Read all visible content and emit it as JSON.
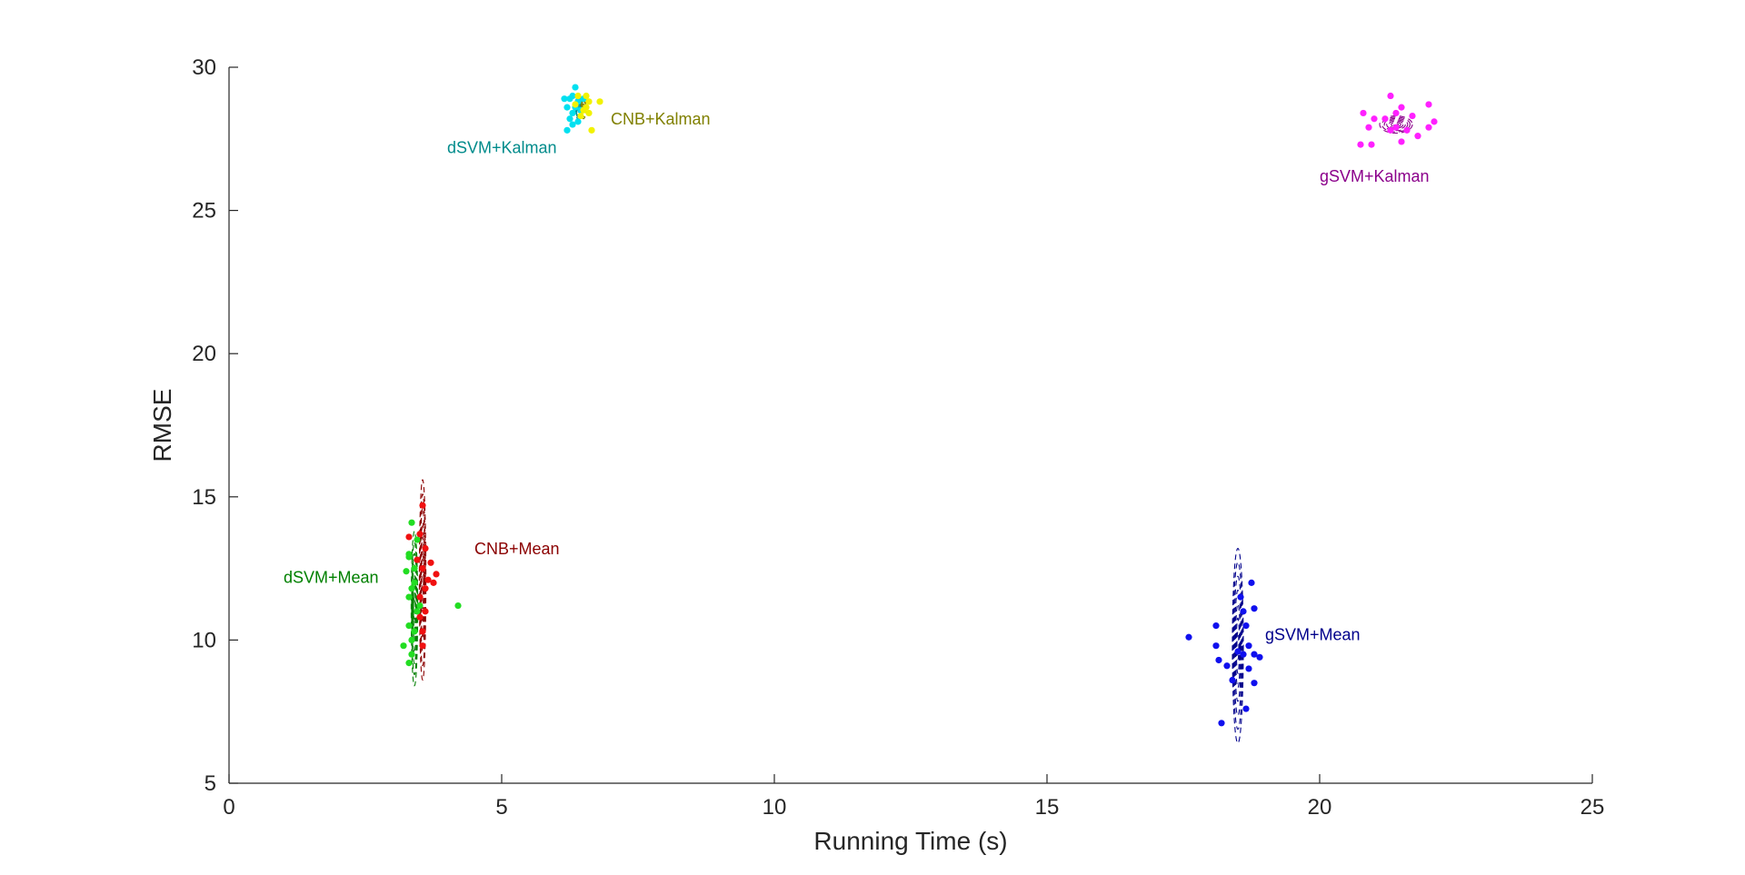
{
  "chart_data": {
    "type": "scatter",
    "title": "",
    "xlabel": "Running Time (s)",
    "ylabel": "RMSE",
    "xlim": [
      0,
      25
    ],
    "ylim": [
      5,
      30
    ],
    "xticks": [
      0,
      5,
      10,
      15,
      20,
      25
    ],
    "yticks": [
      5,
      10,
      15,
      20,
      25,
      30
    ],
    "grid": false,
    "legend": "none",
    "series": [
      {
        "color": "#00E0F0",
        "ellipse_color": "#008B8B",
        "ellipse_center": [
          6.4,
          28.6
        ],
        "ellipse_radii": [
          0.05,
          0.4
        ],
        "points": [
          [
            6.2,
            28.6
          ],
          [
            6.25,
            28.2
          ],
          [
            6.3,
            29.0
          ],
          [
            6.35,
            29.3
          ],
          [
            6.4,
            28.8
          ],
          [
            6.3,
            28.4
          ],
          [
            6.45,
            28.5
          ],
          [
            6.2,
            27.8
          ],
          [
            6.3,
            28.0
          ],
          [
            6.5,
            28.9
          ],
          [
            6.4,
            28.1
          ],
          [
            6.15,
            28.9
          ],
          [
            6.35,
            28.6
          ],
          [
            6.25,
            28.9
          ]
        ]
      },
      {
        "color": "#F2F200",
        "ellipse_color": "#808000",
        "ellipse_center": [
          6.5,
          28.6
        ],
        "ellipse_radii": [
          0.05,
          0.4
        ],
        "points": [
          [
            6.55,
            29.0
          ],
          [
            6.6,
            28.8
          ],
          [
            6.5,
            28.5
          ],
          [
            6.45,
            28.3
          ],
          [
            6.65,
            27.8
          ],
          [
            6.8,
            28.8
          ],
          [
            6.6,
            28.4
          ],
          [
            6.4,
            29.0
          ],
          [
            6.55,
            28.6
          ],
          [
            6.35,
            28.7
          ]
        ]
      },
      {
        "color": "#FF20FF",
        "ellipse_color": "#8B008B",
        "ellipse_center": [
          21.4,
          28.0
        ],
        "ellipse_radii": [
          0.3,
          0.3
        ],
        "points": [
          [
            20.8,
            28.4
          ],
          [
            21.3,
            29.0
          ],
          [
            20.9,
            27.9
          ],
          [
            21.5,
            28.6
          ],
          [
            22.0,
            28.7
          ],
          [
            21.6,
            27.8
          ],
          [
            21.0,
            28.2
          ],
          [
            21.4,
            27.9
          ],
          [
            21.7,
            28.3
          ],
          [
            20.75,
            27.3
          ],
          [
            21.5,
            27.4
          ],
          [
            20.95,
            27.3
          ],
          [
            21.8,
            27.6
          ],
          [
            22.1,
            28.1
          ],
          [
            21.2,
            28.2
          ],
          [
            21.4,
            28.4
          ],
          [
            22.0,
            27.9
          ],
          [
            21.3,
            27.8
          ]
        ]
      },
      {
        "color": "#22DD22",
        "ellipse_color": "#008000",
        "ellipse_center": [
          3.4,
          11.1
        ],
        "ellipse_radii": [
          0.06,
          2.7
        ],
        "points": [
          [
            3.35,
            14.1
          ],
          [
            3.3,
            13.0
          ],
          [
            3.4,
            12.5
          ],
          [
            3.25,
            12.4
          ],
          [
            3.35,
            11.8
          ],
          [
            3.3,
            11.5
          ],
          [
            3.45,
            11.0
          ],
          [
            3.3,
            10.5
          ],
          [
            3.35,
            10.0
          ],
          [
            3.2,
            9.8
          ],
          [
            3.3,
            9.2
          ],
          [
            3.45,
            13.5
          ],
          [
            3.4,
            12.0
          ],
          [
            3.5,
            11.2
          ],
          [
            4.2,
            11.2
          ],
          [
            3.4,
            10.3
          ],
          [
            3.3,
            12.9
          ],
          [
            3.35,
            9.5
          ]
        ]
      },
      {
        "color": "#F01010",
        "ellipse_color": "#8B0000",
        "ellipse_center": [
          3.55,
          12.1
        ],
        "ellipse_radii": [
          0.06,
          3.5
        ],
        "points": [
          [
            3.55,
            14.7
          ],
          [
            3.5,
            13.7
          ],
          [
            3.3,
            13.6
          ],
          [
            3.6,
            13.2
          ],
          [
            3.7,
            12.7
          ],
          [
            3.8,
            12.3
          ],
          [
            3.65,
            12.1
          ],
          [
            3.75,
            12.0
          ],
          [
            3.5,
            11.5
          ],
          [
            3.6,
            11.0
          ],
          [
            3.55,
            10.3
          ],
          [
            3.55,
            9.8
          ],
          [
            3.45,
            12.8
          ],
          [
            3.5,
            10.8
          ],
          [
            3.6,
            11.8
          ],
          [
            3.55,
            12.5
          ]
        ]
      },
      {
        "color": "#1010EE",
        "ellipse_color": "#00008B",
        "ellipse_center": [
          18.5,
          9.8
        ],
        "ellipse_radii": [
          0.1,
          3.4
        ],
        "points": [
          [
            17.6,
            10.1
          ],
          [
            18.1,
            10.5
          ],
          [
            18.1,
            9.8
          ],
          [
            18.15,
            9.3
          ],
          [
            18.2,
            7.1
          ],
          [
            18.6,
            11.0
          ],
          [
            18.65,
            10.5
          ],
          [
            18.7,
            9.8
          ],
          [
            18.75,
            12.0
          ],
          [
            18.8,
            11.1
          ],
          [
            18.6,
            9.5
          ],
          [
            18.7,
            9.0
          ],
          [
            18.65,
            7.6
          ],
          [
            18.8,
            8.5
          ],
          [
            18.9,
            9.4
          ],
          [
            18.4,
            8.6
          ],
          [
            18.5,
            9.6
          ],
          [
            18.8,
            9.5
          ],
          [
            18.55,
            11.5
          ],
          [
            18.3,
            9.1
          ]
        ]
      }
    ],
    "annotations": [
      {
        "text": "dSVM+Kalman",
        "x": 4.0,
        "y": 27.0,
        "color": "#008B8B"
      },
      {
        "text": "CNB+Kalman",
        "x": 7.0,
        "y": 28.0,
        "color": "#808000"
      },
      {
        "text": "gSVM+Kalman",
        "x": 20.0,
        "y": 26.0,
        "color": "#8B008B"
      },
      {
        "text": "CNB+Mean",
        "x": 4.5,
        "y": 13.0,
        "color": "#8B0000"
      },
      {
        "text": "dSVM+Mean",
        "x": 1.0,
        "y": 12.0,
        "color": "#008000"
      },
      {
        "text": "gSVM+Mean",
        "x": 19.0,
        "y": 10.0,
        "color": "#00008B"
      }
    ]
  }
}
